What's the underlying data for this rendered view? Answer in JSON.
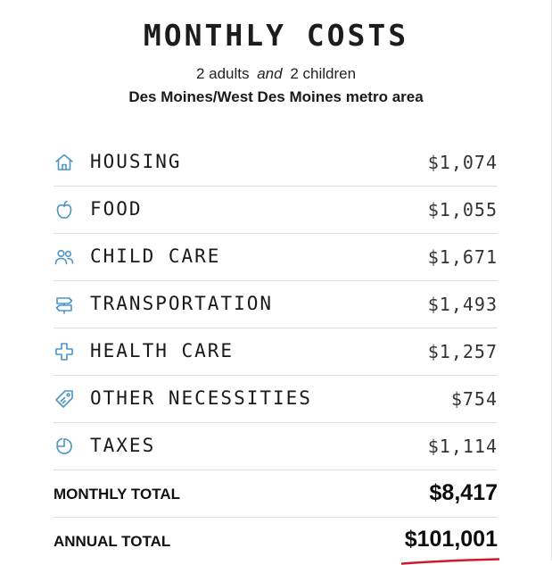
{
  "header": {
    "title": "MONTHLY COSTS",
    "adults": "2 adults",
    "and_word": "and",
    "children": "2 children",
    "metro_area": "Des Moines/West Des Moines metro area"
  },
  "accent_color": "#4b95c8",
  "underline_color": "#d0192b",
  "costs": [
    {
      "icon": "house-icon",
      "label": "HOUSING",
      "value": "$1,074"
    },
    {
      "icon": "apple-icon",
      "label": "FOOD",
      "value": "$1,055"
    },
    {
      "icon": "people-icon",
      "label": "CHILD CARE",
      "value": "$1,671"
    },
    {
      "icon": "signpost-icon",
      "label": "TRANSPORTATION",
      "value": "$1,493"
    },
    {
      "icon": "medical-cross-icon",
      "label": "HEALTH CARE",
      "value": "$1,257"
    },
    {
      "icon": "price-tag-icon",
      "label": "OTHER NECESSITIES",
      "value": "$754"
    },
    {
      "icon": "pie-chart-icon",
      "label": "TAXES",
      "value": "$1,114"
    }
  ],
  "totals": {
    "monthly_label": "MONTHLY TOTAL",
    "monthly_value": "$8,417",
    "annual_label": "ANNUAL TOTAL",
    "annual_value": "$101,001"
  }
}
